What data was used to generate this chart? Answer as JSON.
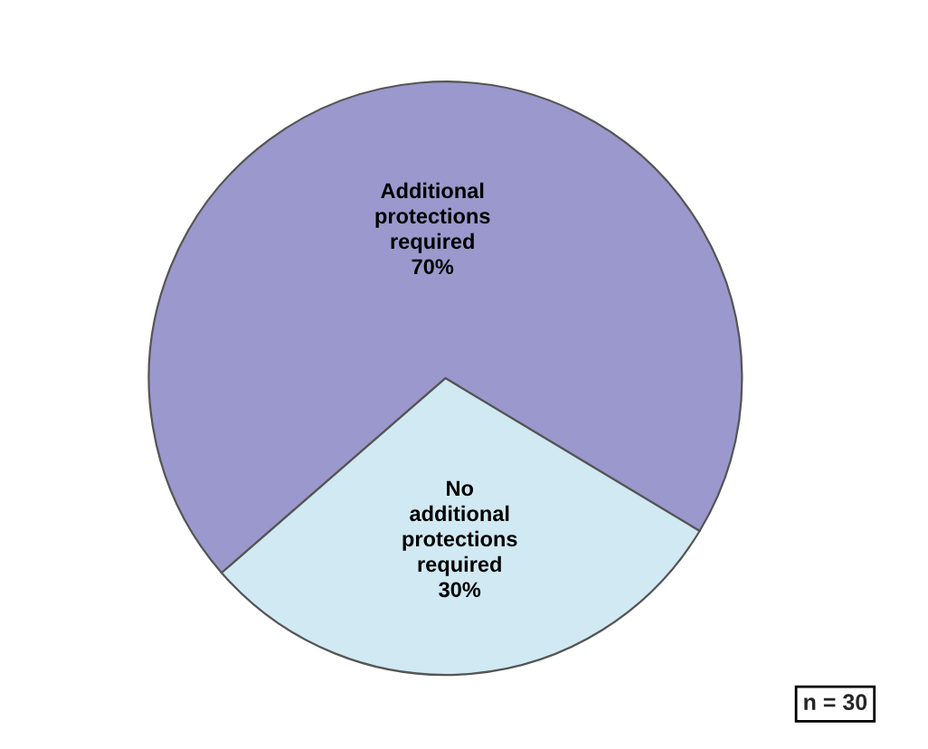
{
  "chart_data": {
    "type": "pie",
    "categories": [
      "Additional\nprotections\nrequired",
      "No\nadditional\nprotections\nrequired"
    ],
    "values": [
      70,
      30
    ],
    "value_labels": [
      "70%",
      "30%"
    ],
    "colors": [
      "#9a98cc",
      "#d0e9f2"
    ],
    "annotations": [
      "n = 30"
    ]
  }
}
